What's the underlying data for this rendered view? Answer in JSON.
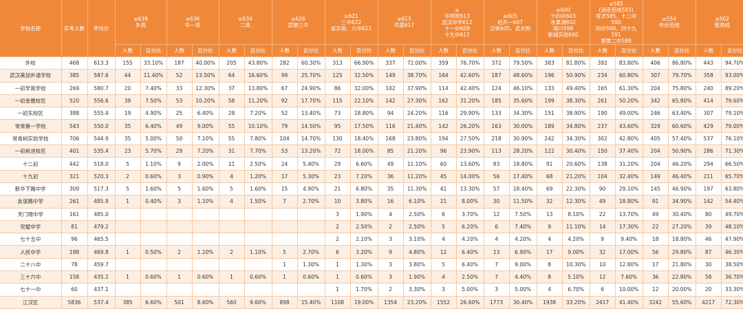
{
  "header": {
    "school_name": "学校名称",
    "students": "实考人数",
    "avg": "平均分",
    "count_label": "人数",
    "pct_label": "百分比",
    "groups": [
      {
        "lines": [
          "≥639",
          "外高"
        ]
      },
      {
        "lines": [
          "≥636",
          "华一高"
        ]
      },
      {
        "lines": [
          "≥634",
          "二高"
        ]
      },
      {
        "lines": [
          "≥626",
          "武钢三中"
        ]
      },
      {
        "lines": [
          "≥621",
          "三中622",
          "省实验、六中621"
        ]
      },
      {
        "lines": [
          "≥615",
          "洪晨617"
        ]
      },
      {
        "lines": [
          "≥",
          "华师附613",
          "武汉中学612",
          "十一中609",
          "十九中611"
        ]
      },
      {
        "lines": [
          "≥605",
          "经开一607",
          "汉铁605、武大附"
        ]
      },
      {
        "lines": [
          "≥600",
          "十四中603",
          "水果湖602",
          "晴川598",
          "新城实验600"
        ]
      },
      {
        "lines": [
          "≥585",
          "(消示范线583)",
          "育才585、十二中",
          "590",
          "四中590、四十九",
          "591",
          "黎黄二中588"
        ]
      },
      {
        "lines": [
          "≥554",
          "市示范线"
        ]
      },
      {
        "lines": [
          "≥502",
          "普高线"
        ]
      }
    ]
  },
  "rows": [
    [
      "外校",
      "468",
      "613.3",
      "155",
      "33.10%",
      "187",
      "40.00%",
      "205",
      "43.80%",
      "282",
      "60.30%",
      "313",
      "66.90%",
      "337",
      "72.00%",
      "359",
      "76.70%",
      "372",
      "79.50%",
      "383",
      "81.80%",
      "392",
      "83.80%",
      "406",
      "86.80%",
      "443",
      "94.70%"
    ],
    [
      "武汉美加外语学校",
      "385",
      "587.6",
      "44",
      "11.40%",
      "52",
      "13.50%",
      "64",
      "16.60%",
      "99",
      "25.70%",
      "125",
      "32.50%",
      "149",
      "38.70%",
      "164",
      "42.60%",
      "187",
      "48.60%",
      "196",
      "50.90%",
      "234",
      "60.80%",
      "307",
      "79.70%",
      "358",
      "93.00%"
    ],
    [
      "一初学苑学校",
      "269",
      "580.7",
      "20",
      "7.40%",
      "33",
      "12.30%",
      "37",
      "13.80%",
      "67",
      "24.90%",
      "86",
      "32.00%",
      "102",
      "37.90%",
      "114",
      "42.40%",
      "124",
      "46.10%",
      "133",
      "49.40%",
      "165",
      "61.30%",
      "204",
      "75.80%",
      "240",
      "89.20%"
    ],
    [
      "一初金雅校区",
      "520",
      "556.6",
      "39",
      "7.50%",
      "53",
      "10.20%",
      "58",
      "11.20%",
      "92",
      "17.70%",
      "115",
      "22.10%",
      "142",
      "27.30%",
      "162",
      "31.20%",
      "185",
      "35.60%",
      "199",
      "38.30%",
      "261",
      "50.20%",
      "342",
      "65.80%",
      "414",
      "79.60%"
    ],
    [
      "一初东校区",
      "388",
      "555.4",
      "19",
      "4.90%",
      "25",
      "6.40%",
      "28",
      "7.20%",
      "52",
      "13.40%",
      "73",
      "18.80%",
      "94",
      "24.20%",
      "116",
      "29.90%",
      "133",
      "34.30%",
      "151",
      "38.90%",
      "190",
      "49.00%",
      "246",
      "63.40%",
      "307",
      "79.10%"
    ],
    [
      "常青第一学校",
      "543",
      "550.0",
      "35",
      "6.40%",
      "49",
      "9.00%",
      "55",
      "10.10%",
      "79",
      "14.50%",
      "95",
      "17.50%",
      "116",
      "21.40%",
      "142",
      "26.20%",
      "163",
      "30.00%",
      "189",
      "34.80%",
      "237",
      "43.60%",
      "329",
      "60.60%",
      "429",
      "79.00%"
    ],
    [
      "常青树实验学校",
      "706",
      "544.9",
      "35",
      "5.00%",
      "50",
      "7.10%",
      "55",
      "7.80%",
      "104",
      "14.70%",
      "130",
      "18.40%",
      "168",
      "23.80%",
      "194",
      "27.50%",
      "218",
      "30.90%",
      "242",
      "34.30%",
      "302",
      "42.80%",
      "405",
      "57.40%",
      "537",
      "76.10%"
    ],
    [
      "一初前进校区",
      "401",
      "535.4",
      "23",
      "5.70%",
      "29",
      "7.20%",
      "31",
      "7.70%",
      "53",
      "13.20%",
      "72",
      "18.00%",
      "85",
      "21.20%",
      "96",
      "23.90%",
      "113",
      "28.20%",
      "122",
      "30.40%",
      "150",
      "37.40%",
      "204",
      "50.90%",
      "286",
      "71.30%"
    ],
    [
      "十二初",
      "442",
      "518.0",
      "5",
      "1.10%",
      "9",
      "2.00%",
      "11",
      "2.50%",
      "24",
      "5.40%",
      "29",
      "6.60%",
      "49",
      "11.10%",
      "60",
      "13.60%",
      "83",
      "18.80%",
      "91",
      "20.60%",
      "138",
      "31.20%",
      "204",
      "46.20%",
      "294",
      "66.50%"
    ],
    [
      "十九初",
      "321",
      "520.3",
      "2",
      "0.60%",
      "3",
      "0.90%",
      "4",
      "1.20%",
      "17",
      "5.30%",
      "23",
      "7.20%",
      "36",
      "11.20%",
      "45",
      "14.00%",
      "56",
      "17.40%",
      "68",
      "21.20%",
      "104",
      "32.40%",
      "149",
      "46.40%",
      "211",
      "65.70%"
    ],
    [
      "新华下路中学",
      "309",
      "517.3",
      "5",
      "1.60%",
      "5",
      "1.60%",
      "5",
      "1.60%",
      "15",
      "4.90%",
      "21",
      "6.80%",
      "35",
      "11.30%",
      "41",
      "13.30%",
      "57",
      "18.40%",
      "69",
      "22.30%",
      "90",
      "29.10%",
      "145",
      "46.90%",
      "197",
      "63.80%"
    ],
    [
      "友谊路中学",
      "261",
      "485.9",
      "1",
      "0.40%",
      "3",
      "1.10%",
      "4",
      "1.50%",
      "7",
      "2.70%",
      "10",
      "3.80%",
      "16",
      "6.10%",
      "21",
      "8.00%",
      "30",
      "11.50%",
      "32",
      "12.30%",
      "49",
      "18.80%",
      "91",
      "34.90%",
      "142",
      "54.40%"
    ],
    [
      "天门墩中学",
      "161",
      "485.0",
      "",
      "",
      "",
      "",
      "",
      "",
      "",
      "",
      "3",
      "1.90%",
      "4",
      "2.50%",
      "6",
      "3.70%",
      "12",
      "7.50%",
      "13",
      "8.10%",
      "22",
      "13.70%",
      "49",
      "30.40%",
      "80",
      "49.70%"
    ],
    [
      "完璧中学",
      "81",
      "479.2",
      "",
      "",
      "",
      "",
      "",
      "",
      "",
      "",
      "2",
      "2.50%",
      "2",
      "2.50%",
      "5",
      "6.20%",
      "6",
      "7.40%",
      "9",
      "11.10%",
      "14",
      "17.30%",
      "22",
      "27.20%",
      "39",
      "48.10%"
    ],
    [
      "七十五中",
      "96",
      "465.5",
      "",
      "",
      "",
      "",
      "",
      "",
      "",
      "",
      "2",
      "2.10%",
      "3",
      "3.10%",
      "4",
      "4.20%",
      "4",
      "4.20%",
      "4",
      "4.20%",
      "9",
      "9.40%",
      "18",
      "18.80%",
      "46",
      "47.90%"
    ],
    [
      "人民中学",
      "188",
      "469.8",
      "1",
      "0.50%",
      "2",
      "1.10%",
      "2",
      "1.10%",
      "5",
      "2.70%",
      "6",
      "3.20%",
      "9",
      "4.80%",
      "12",
      "6.40%",
      "13",
      "6.90%",
      "17",
      "9.00%",
      "32",
      "17.00%",
      "56",
      "29.80%",
      "87",
      "46.30%"
    ],
    [
      "二十八中",
      "78",
      "459.7",
      "",
      "",
      "",
      "",
      "",
      "",
      "1",
      "1.30%",
      "1",
      "1.30%",
      "3",
      "3.80%",
      "5",
      "6.40%",
      "7",
      "9.00%",
      "8",
      "10.30%",
      "10",
      "12.80%",
      "17",
      "21.80%",
      "30",
      "38.50%"
    ],
    [
      "三十六中",
      "158",
      "435.2",
      "1",
      "0.60%",
      "1",
      "0.60%",
      "1",
      "0.60%",
      "1",
      "0.60%",
      "1",
      "0.60%",
      "3",
      "1.90%",
      "4",
      "2.50%",
      "7",
      "4.40%",
      "8",
      "5.10%",
      "12",
      "7.60%",
      "36",
      "22.80%",
      "58",
      "36.70%"
    ],
    [
      "七十一中",
      "60",
      "437.1",
      "",
      "",
      "",
      "",
      "",
      "",
      "",
      "",
      "1",
      "1.70%",
      "2",
      "3.30%",
      "3",
      "5.00%",
      "3",
      "5.00%",
      "4",
      "6.70%",
      "6",
      "10.00%",
      "12",
      "20.00%",
      "20",
      "33.30%"
    ],
    [
      "江汉区",
      "5836",
      "537.4",
      "385",
      "6.60%",
      "501",
      "8.60%",
      "560",
      "9.60%",
      "898",
      "15.40%",
      "1108",
      "19.00%",
      "1354",
      "23.20%",
      "1552",
      "26.60%",
      "1773",
      "30.40%",
      "1938",
      "33.20%",
      "2417",
      "41.40%",
      "3242",
      "55.60%",
      "4217",
      "72.30%"
    ]
  ]
}
